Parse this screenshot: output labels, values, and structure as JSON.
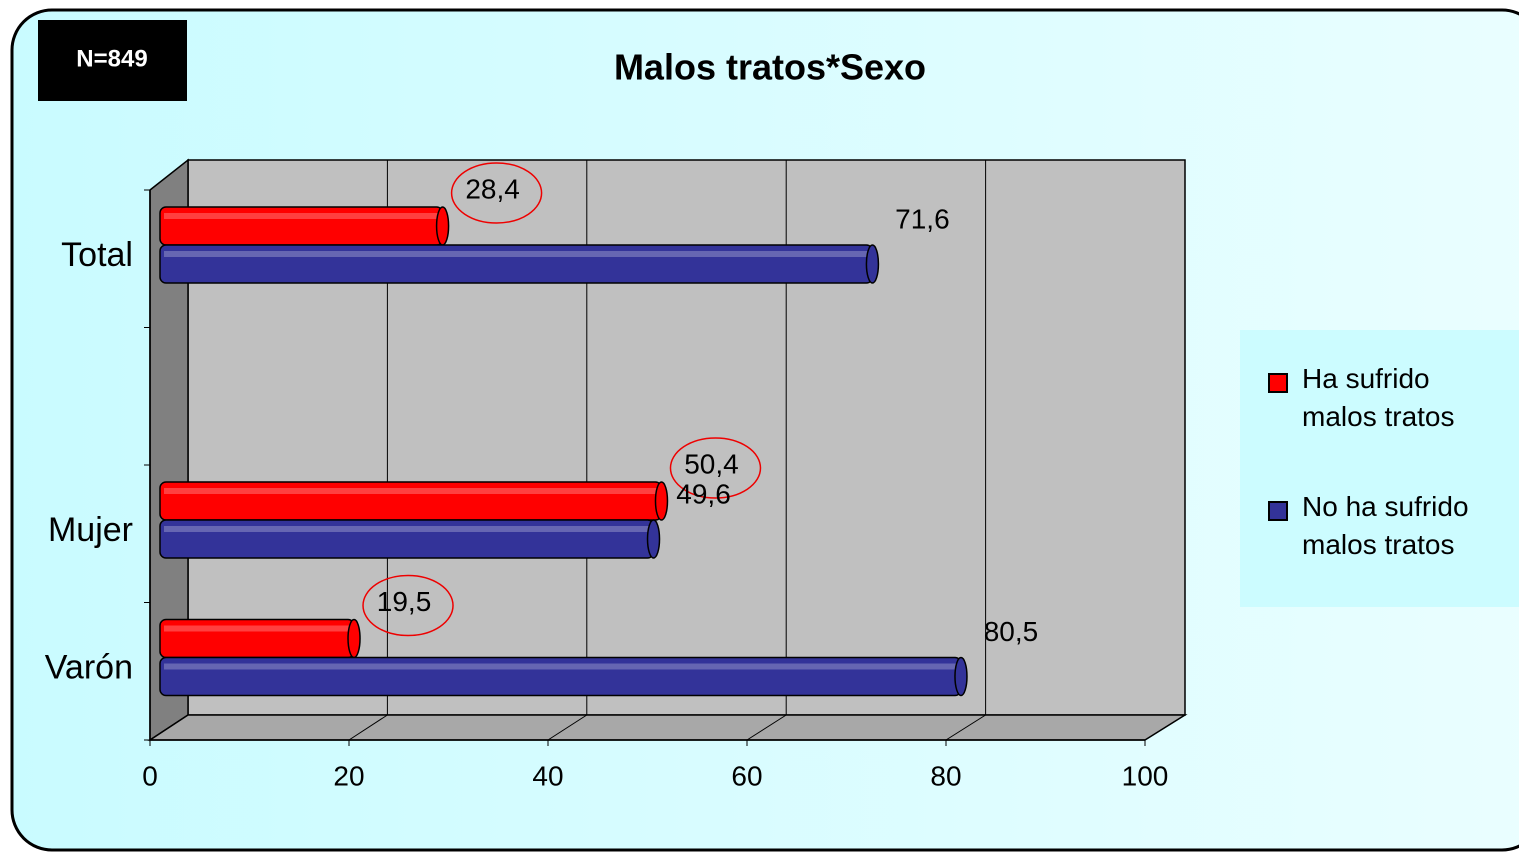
{
  "chart_data": {
    "type": "bar",
    "orientation": "horizontal",
    "title": "Malos tratos*Sexo",
    "annotation": "N=849",
    "categories": [
      "Total",
      null,
      "Mujer",
      "Varón"
    ],
    "series": [
      {
        "name": "Ha sufrido malos tratos",
        "color": "#ff0000",
        "values": [
          28.4,
          null,
          50.4,
          19.5
        ],
        "value_labels": [
          "28,4",
          null,
          "50,4",
          "19,5"
        ]
      },
      {
        "name": "No ha sufrido malos tratos",
        "color": "#333399",
        "values": [
          71.6,
          null,
          49.6,
          80.5
        ],
        "value_labels": [
          "71,6",
          null,
          "49,6",
          "80,5"
        ]
      }
    ],
    "xlim": [
      0,
      100
    ],
    "xticks": [
      0,
      20,
      40,
      60,
      80,
      100
    ],
    "grid": true,
    "legend": "right"
  }
}
